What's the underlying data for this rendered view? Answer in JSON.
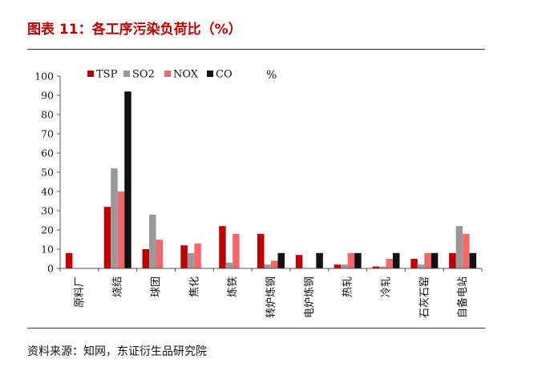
{
  "header": {
    "title": "图表 11：各工序污染负荷比（%）"
  },
  "footer": {
    "source": "资料来源：知网，东证衍生品研究院"
  },
  "colors": {
    "title": "#c00000",
    "TSP": "#c00000",
    "SO2": "#999999",
    "NOX": "#f4686a",
    "CO": "#111111"
  },
  "chart_data": {
    "type": "bar",
    "unit": "%",
    "categories": [
      "原料厂",
      "烧结",
      "球团",
      "焦化",
      "炼铁",
      "转炉炼钢",
      "电炉炼钢",
      "热轧",
      "冷轧",
      "石灰石窑",
      "自备电站"
    ],
    "series": [
      {
        "name": "TSP",
        "values": [
          8,
          32,
          10,
          12,
          22,
          18,
          7,
          2,
          1,
          5,
          8
        ]
      },
      {
        "name": "SO2",
        "values": [
          0,
          52,
          28,
          8,
          3,
          2,
          0,
          2,
          1,
          2,
          22
        ]
      },
      {
        "name": "NOX",
        "values": [
          0,
          40,
          15,
          13,
          18,
          4,
          0,
          8,
          5,
          8,
          18
        ]
      },
      {
        "name": "CO",
        "values": [
          0,
          92,
          0,
          0,
          0,
          8,
          8,
          8,
          8,
          8,
          8
        ]
      }
    ],
    "ylim": [
      0,
      100
    ],
    "yticks": [
      0,
      10,
      20,
      30,
      40,
      50,
      60,
      70,
      80,
      90,
      100
    ],
    "legend": "top"
  }
}
